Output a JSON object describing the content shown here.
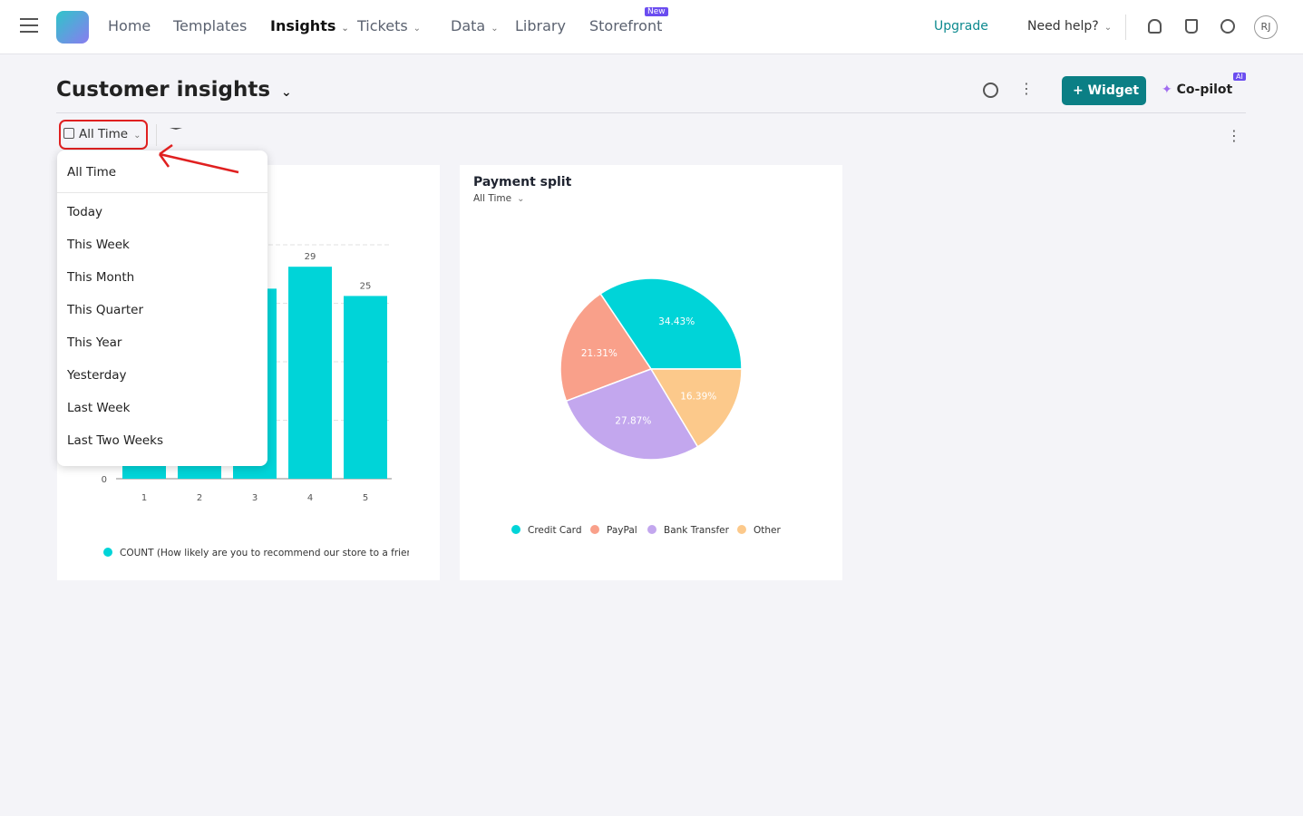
{
  "nav": {
    "items": [
      "Home",
      "Templates",
      "Insights",
      "Tickets",
      "Data",
      "Library",
      "Storefront"
    ],
    "badge": "New",
    "upgrade": "Upgrade",
    "help": "Need help?",
    "avatar": "RJ"
  },
  "header": {
    "title": "Customer insights",
    "widget_button": "Widget",
    "copilot": "Co-pilot",
    "copilot_badge": "AI"
  },
  "filter": {
    "selected": "All Time",
    "options": [
      "All Time",
      "Today",
      "This Week",
      "This Month",
      "This Quarter",
      "This Year",
      "Yesterday",
      "Last Week",
      "Last Two Weeks"
    ]
  },
  "chart_data": [
    {
      "type": "bar",
      "categories": [
        "1",
        "2",
        "3",
        "4",
        "5"
      ],
      "values": [
        20,
        22,
        26,
        29,
        25
      ],
      "color": "#00d4d8",
      "ylim": [
        0,
        32
      ],
      "yticks": [
        0,
        8,
        16,
        24,
        32
      ],
      "grid": true,
      "legend": "COUNT (How likely are you to recommend our store to a friend?)"
    },
    {
      "type": "pie",
      "title": "Payment split",
      "subtitle": "All Time",
      "categories": [
        "Credit Card",
        "PayPal",
        "Bank Transfer",
        "Other"
      ],
      "values": [
        34.43,
        21.31,
        27.87,
        16.39
      ],
      "value_labels": [
        "34.43%",
        "21.31%",
        "27.87%",
        "16.39%"
      ],
      "colors": [
        "#00d4d8",
        "#f9a08a",
        "#c3a7ee",
        "#fcc98b"
      ]
    }
  ]
}
